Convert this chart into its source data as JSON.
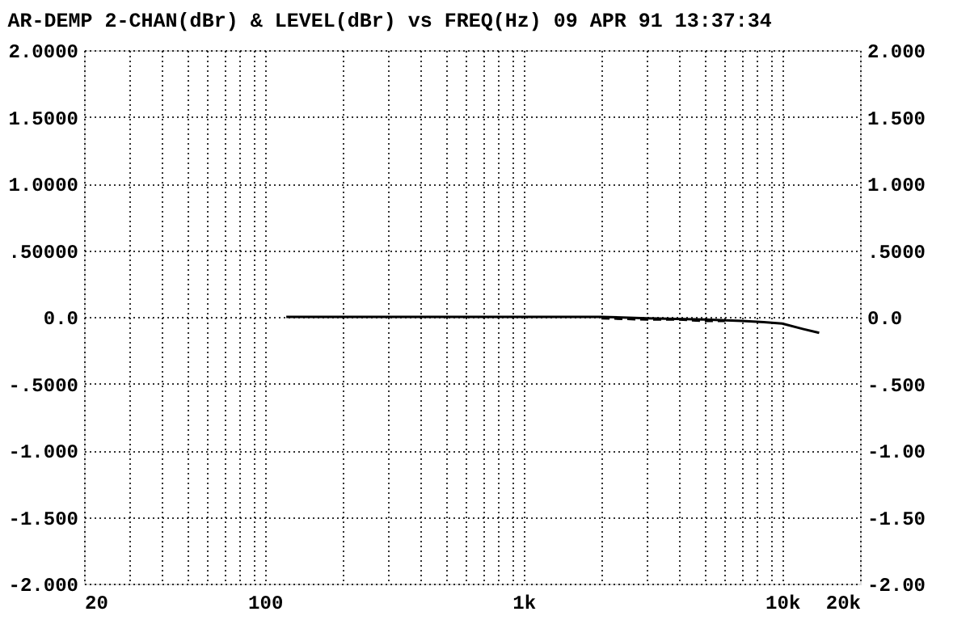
{
  "chart_data": {
    "type": "line",
    "title": "AR-DEMP 2-CHAN(dBr) & LEVEL(dBr) vs FREQ(Hz) 09 APR 91 13:37:34",
    "log": "x",
    "grid": true,
    "marker": "none",
    "xlim": [
      20,
      20000
    ],
    "xticks": [
      20,
      {
        "value": 30,
        "label": null
      },
      {
        "value": 40,
        "label": null
      },
      {
        "value": 50,
        "label": null
      },
      {
        "value": 60,
        "label": null
      },
      {
        "value": 70,
        "label": null
      },
      {
        "value": 80,
        "label": null
      },
      {
        "value": 90,
        "label": null
      },
      100,
      {
        "value": 200,
        "label": null
      },
      {
        "value": 300,
        "label": null
      },
      {
        "value": 400,
        "label": null
      },
      {
        "value": 500,
        "label": null
      },
      {
        "value": 600,
        "label": null
      },
      {
        "value": 700,
        "label": null
      },
      {
        "value": 800,
        "label": null
      },
      {
        "value": 900,
        "label": null
      },
      {
        "value": 1000,
        "label": "1k"
      },
      {
        "value": 2000,
        "label": null
      },
      {
        "value": 3000,
        "label": null
      },
      {
        "value": 4000,
        "label": null
      },
      {
        "value": 5000,
        "label": null
      },
      {
        "value": 6000,
        "label": null
      },
      {
        "value": 7000,
        "label": null
      },
      {
        "value": 8000,
        "label": null
      },
      {
        "value": 9000,
        "label": null
      },
      {
        "value": 10000,
        "label": "10k"
      },
      {
        "value": 20000,
        "label": "20k"
      }
    ],
    "ylim": [
      -2,
      2
    ],
    "yticks": [
      {
        "value": 2,
        "label": "2.0000"
      },
      {
        "value": 1.5,
        "label": "1.5000"
      },
      {
        "value": 1,
        "label": "1.0000"
      },
      {
        "value": 0.5,
        "label": ".50000"
      },
      {
        "value": 0,
        "label": "0.0"
      },
      {
        "value": -0.5,
        "label": "-.5000"
      },
      {
        "value": -1,
        "label": "-1.000"
      },
      {
        "value": -1.5,
        "label": "-1.500"
      },
      {
        "value": -2,
        "label": "-2.000"
      }
    ],
    "y2lim": [
      -2,
      2
    ],
    "y2ticks": [
      {
        "value": 2,
        "label": "2.000"
      },
      {
        "value": 1.5,
        "label": "1.500"
      },
      {
        "value": 1,
        "label": "1.000"
      },
      {
        "value": 0.5,
        "label": ".5000"
      },
      {
        "value": 0,
        "label": "0.0"
      },
      {
        "value": -0.5,
        "label": "-.500"
      },
      {
        "value": -1,
        "label": "-1.00"
      },
      {
        "value": -1.5,
        "label": "-1.50"
      },
      {
        "value": -2,
        "label": "-2.00"
      }
    ],
    "series": [
      {
        "color": "#000000",
        "line_style": "solid",
        "x": [
          121,
          200,
          500,
          1000,
          2000,
          3000,
          5000,
          7000,
          8500,
          10000,
          12000,
          13900
        ],
        "values": [
          0,
          0,
          0,
          0,
          0,
          -0.01,
          -0.02,
          -0.03,
          -0.04,
          -0.05,
          -0.09,
          -0.12
        ]
      },
      {
        "color": "#000000",
        "line_style": "dashed",
        "x": [
          2000,
          3000,
          4000,
          5000,
          6000
        ],
        "values": [
          -0.01,
          -0.02,
          -0.02,
          -0.03,
          -0.03
        ]
      }
    ]
  }
}
